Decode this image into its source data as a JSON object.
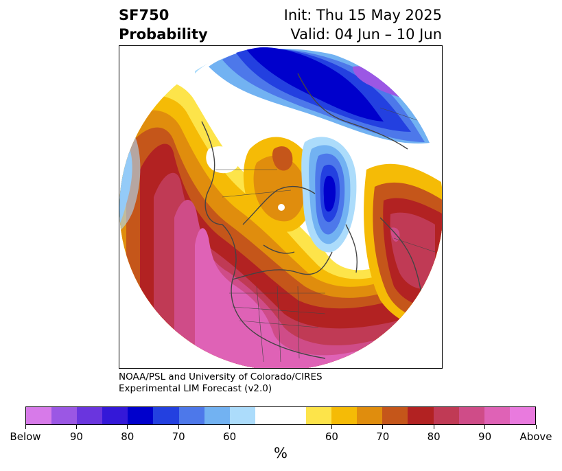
{
  "title": {
    "left_line1": "SF750",
    "left_line2": "Probability",
    "right_line1": "Init: Thu 15 May 2025",
    "right_line2": "Valid: 04 Jun – 10 Jun"
  },
  "credit": {
    "line1": "NOAA/PSL and University of Colorado/CIRES",
    "line2": "Experimental LIM Forecast (v2.0)"
  },
  "colorbar": {
    "colors": [
      "#d77ae9",
      "#9b57e4",
      "#6a35de",
      "#3418d8",
      "#0000cc",
      "#2340e0",
      "#4d78ea",
      "#72b2f2",
      "#acdcfb",
      "#ffffff",
      "#ffffff",
      "#fde44a",
      "#f5bb06",
      "#e08d0d",
      "#c5561a",
      "#b22222",
      "#c03a55",
      "#cf4c88",
      "#df62b6",
      "#e97ade"
    ],
    "tick_labels": [
      "Below",
      "90",
      "80",
      "70",
      "60",
      "60",
      "70",
      "80",
      "90",
      "Above"
    ],
    "unit": "%"
  },
  "legend_colors": {
    "below_strong": "#0000cc",
    "below_weak": "#acdcfb",
    "above_weak": "#fde44a",
    "above_strong": "#df62b6"
  }
}
